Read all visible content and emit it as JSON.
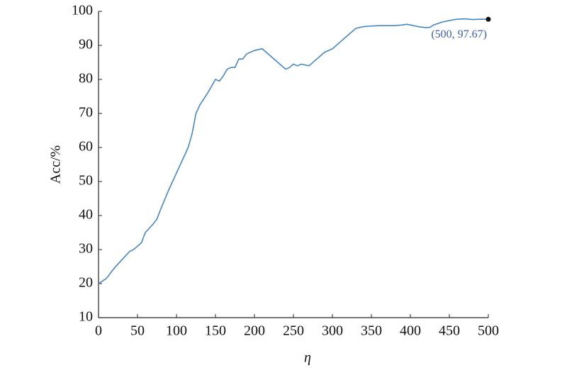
{
  "chart_data": {
    "type": "line",
    "x_label": "η",
    "y_label": "Acc/%",
    "x": [
      0,
      10,
      20,
      30,
      40,
      45,
      50,
      55,
      60,
      70,
      75,
      80,
      90,
      100,
      110,
      115,
      120,
      125,
      130,
      140,
      150,
      155,
      160,
      165,
      170,
      175,
      180,
      185,
      190,
      200,
      210,
      220,
      230,
      240,
      245,
      250,
      255,
      260,
      270,
      280,
      290,
      300,
      310,
      320,
      330,
      340,
      350,
      360,
      370,
      380,
      390,
      395,
      400,
      410,
      420,
      425,
      430,
      440,
      450,
      460,
      470,
      480,
      490,
      500
    ],
    "series": [
      {
        "color": "#4a86c0",
        "values": [
          20,
          21.5,
          24.5,
          27,
          29.5,
          30,
          31,
          32,
          35,
          37.5,
          39,
          42,
          47.5,
          52.5,
          57.5,
          60,
          64,
          70,
          72.5,
          76,
          80,
          79.5,
          81,
          83,
          83.5,
          83.5,
          86,
          86,
          87.5,
          88.5,
          89,
          87,
          85,
          83,
          83.5,
          84.5,
          84,
          84.5,
          84,
          86,
          88,
          89,
          91,
          93,
          95,
          95.5,
          95.7,
          95.8,
          95.8,
          95.8,
          96,
          96.2,
          96,
          95.5,
          95.2,
          95.3,
          96,
          96.8,
          97.3,
          97.7,
          97.8,
          97.6,
          97.7,
          97.67
        ]
      }
    ],
    "annotation": "(500, 97.67)",
    "xlim": [
      0,
      500
    ],
    "ylim": [
      10,
      100
    ],
    "xticks": [
      0,
      50,
      100,
      150,
      200,
      250,
      300,
      350,
      400,
      450,
      500
    ],
    "yticks": [
      10,
      20,
      30,
      40,
      50,
      60,
      70,
      80,
      90,
      100
    ]
  }
}
